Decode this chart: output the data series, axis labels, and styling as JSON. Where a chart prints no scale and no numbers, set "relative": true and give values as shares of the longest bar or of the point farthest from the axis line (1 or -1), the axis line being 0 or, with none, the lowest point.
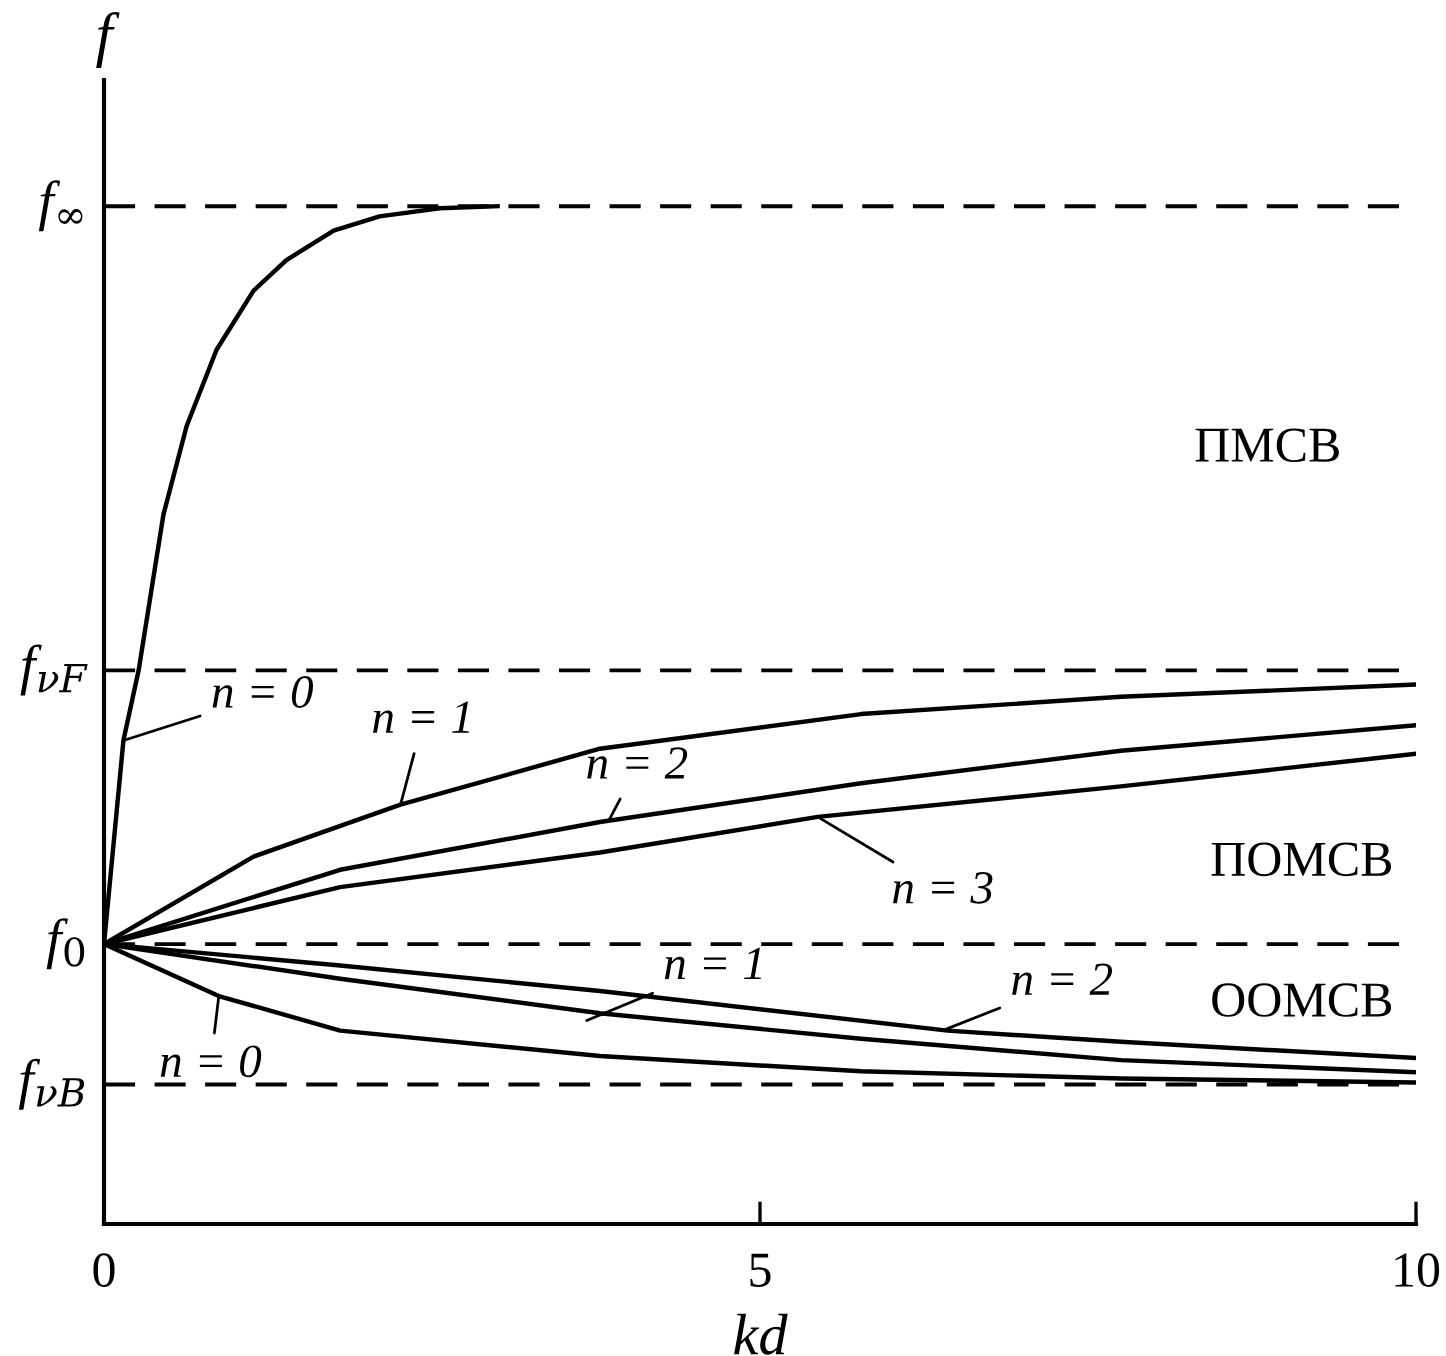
{
  "chart_data": {
    "type": "line",
    "relative": true,
    "xlabel": "kd",
    "ylabel": "f",
    "xlim": [
      0,
      10
    ],
    "xticks": [
      0,
      5,
      10
    ],
    "grid": false,
    "legend": false,
    "series": [
      {
        "color": "#000000",
        "x": [
          0,
          0.148,
          0.264,
          0.453,
          0.63,
          0.858,
          1.14,
          1.39,
          1.75,
          2.1,
          2.56,
          3.0
        ],
        "values": [
          0.275,
          0.475,
          0.544,
          0.697,
          0.784,
          0.859,
          0.917,
          0.947,
          0.976,
          0.99,
          0.998,
          1.0
        ]
      },
      {
        "color": "#000000",
        "x": [
          0,
          1.14,
          2.26,
          3.78,
          5.77,
          7.75,
          10
        ],
        "values": [
          0.275,
          0.361,
          0.412,
          0.467,
          0.501,
          0.518,
          0.53
        ]
      },
      {
        "color": "#000000",
        "x": [
          0,
          1.8,
          3.78,
          5.77,
          7.75,
          10
        ],
        "values": [
          0.275,
          0.348,
          0.395,
          0.433,
          0.465,
          0.49
        ]
      },
      {
        "color": "#000000",
        "x": [
          0,
          1.8,
          3.78,
          5.44,
          7.75,
          10
        ],
        "values": [
          0.275,
          0.331,
          0.365,
          0.4,
          0.43,
          0.462
        ]
      },
      {
        "color": "#000000",
        "x": [
          0,
          0.875,
          1.8,
          3.78,
          5.77,
          7.75,
          10
        ],
        "values": [
          0.275,
          0.224,
          0.19,
          0.165,
          0.15,
          0.143,
          0.139
        ]
      },
      {
        "color": "#000000",
        "x": [
          0,
          1.8,
          3.78,
          5.77,
          7.75,
          10
        ],
        "values": [
          0.275,
          0.241,
          0.207,
          0.182,
          0.161,
          0.149
        ]
      },
      {
        "color": "#000000",
        "x": [
          0,
          1.8,
          3.78,
          6.43,
          7.75,
          10
        ],
        "values": [
          0.275,
          0.254,
          0.229,
          0.19,
          0.179,
          0.163
        ]
      }
    ],
    "ref_lines": [
      {
        "axis": "y",
        "value": 1.0,
        "label": "f$_{∞}$",
        "line_style": "dashed",
        "color": "#000000"
      },
      {
        "axis": "y",
        "value": 0.544,
        "label": "f$_{νF}$",
        "line_style": "dashed",
        "color": "#000000"
      },
      {
        "axis": "y",
        "value": 0.275,
        "label": "f$_{0}$",
        "line_style": "dashed",
        "color": "#000000"
      },
      {
        "axis": "y",
        "value": 0.137,
        "label": "f$_{νB}$",
        "line_style": "dashed",
        "color": "#000000"
      }
    ],
    "annotations": [
      {
        "text": "n = 0",
        "x": 0.148,
        "y": 0.475
      },
      {
        "text": "n = 1",
        "x": 2.26,
        "y": 0.412
      },
      {
        "text": "n = 2",
        "x": 3.85,
        "y": 0.397
      },
      {
        "text": "n = 3",
        "x": 5.44,
        "y": 0.4
      },
      {
        "text": "n = 1",
        "x": 3.68,
        "y": 0.2
      },
      {
        "text": "n = 2",
        "x": 6.39,
        "y": 0.19
      },
      {
        "text": "n = 0",
        "x": 0.875,
        "y": 0.224
      },
      "ПМСВ",
      "ПОМСВ",
      "ООМСВ"
    ]
  }
}
